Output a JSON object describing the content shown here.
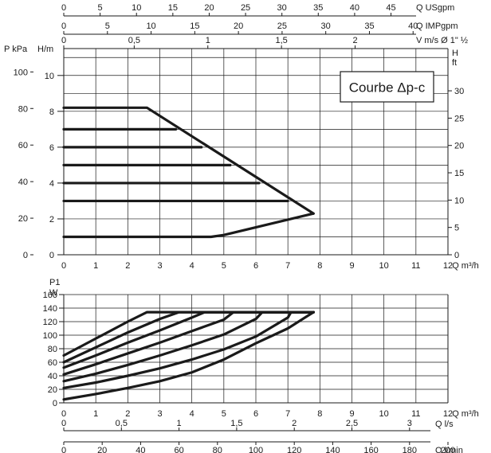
{
  "chart_data": [
    {
      "type": "line",
      "x_unit": "Q m³/h",
      "xlim": [
        0,
        12
      ],
      "x_ticks": [
        "0",
        "1",
        "2",
        "3",
        "4",
        "5",
        "6",
        "7",
        "8",
        "9",
        "10",
        "11",
        "12"
      ],
      "y_left_unit_1": "P kPa",
      "y_left_unit_2": "H/m",
      "y_left_1_ticks": [
        "0",
        "20",
        "40",
        "60",
        "80",
        "100"
      ],
      "y_left_2_ticks": [
        "0",
        "2",
        "4",
        "6",
        "8",
        "10"
      ],
      "y_right_unit_top": "H",
      "y_right_unit_bottom": "ft",
      "y_right_ticks": [
        "0",
        "5",
        "10",
        "15",
        "20",
        "25",
        "30"
      ],
      "ylim": [
        0,
        11.5
      ],
      "legend_title": "Courbe Δp-c",
      "top_axes": [
        {
          "unit": "Q USgpm",
          "ticks": [
            "0",
            "5",
            "10",
            "15",
            "20",
            "25",
            "30",
            "35",
            "40",
            "45"
          ],
          "tick_values_m3h": [
            0,
            1.1356,
            2.2712,
            3.4069,
            4.5425,
            5.6781,
            6.8137,
            7.9493,
            9.085,
            10.2206
          ]
        },
        {
          "unit": "Q IMPgpm",
          "ticks": [
            "0",
            "5",
            "10",
            "15",
            "20",
            "25",
            "30",
            "35",
            "40"
          ],
          "tick_values_m3h": [
            0,
            1.3638,
            2.7277,
            4.0915,
            5.4553,
            6.8191,
            8.183,
            9.5468,
            10.9106
          ]
        },
        {
          "unit": "V m/s Ø 1\" ½",
          "ticks": [
            "0",
            "0,5",
            "1",
            "1,5",
            "2"
          ],
          "tick_values_m3h": [
            0,
            2.2,
            4.5,
            6.8,
            9.1
          ]
        }
      ],
      "series": [
        {
          "x": [
            0,
            2.6,
            7.8
          ],
          "y": [
            8.2,
            8.2,
            2.3
          ]
        },
        {
          "x": [
            0,
            3.5
          ],
          "y": [
            7.0,
            7.0
          ]
        },
        {
          "x": [
            0,
            4.3
          ],
          "y": [
            6.0,
            6.0
          ]
        },
        {
          "x": [
            0,
            5.2
          ],
          "y": [
            5.0,
            5.0
          ]
        },
        {
          "x": [
            0,
            6.1
          ],
          "y": [
            4.0,
            4.0
          ]
        },
        {
          "x": [
            0,
            7.0
          ],
          "y": [
            3.0,
            3.0
          ]
        },
        {
          "x": [
            0,
            4.6,
            5.0,
            7.8
          ],
          "y": [
            1.0,
            1.0,
            1.1,
            2.3
          ]
        }
      ]
    },
    {
      "type": "line",
      "y_unit_1": "P1",
      "y_unit_2": "W",
      "ylim": [
        0,
        160
      ],
      "y_ticks": [
        "0",
        "20",
        "40",
        "60",
        "80",
        "100",
        "120",
        "140",
        "160"
      ],
      "xlim": [
        0,
        12
      ],
      "x_unit": "Q m³/h",
      "x_ticks": [
        "0",
        "1",
        "2",
        "3",
        "4",
        "5",
        "6",
        "7",
        "8",
        "9",
        "10",
        "11",
        "12"
      ],
      "bottom_axes": [
        {
          "unit": "Q l/s",
          "ticks": [
            "0",
            "0,5",
            "1",
            "1,5",
            "2",
            "2,5",
            "3"
          ],
          "tick_values_m3h": [
            0,
            1.8,
            3.6,
            5.4,
            7.2,
            9.0,
            10.8
          ]
        },
        {
          "unit": "Q l/min",
          "ticks": [
            "0",
            "20",
            "40",
            "60",
            "80",
            "100",
            "120",
            "140",
            "160",
            "180",
            "200"
          ],
          "tick_values_m3h": [
            0,
            1.2,
            2.4,
            3.6,
            4.8,
            6.0,
            7.2,
            8.4,
            9.6,
            10.8,
            12.0
          ]
        }
      ],
      "series": [
        {
          "x": [
            0,
            1.0,
            2.0,
            2.6,
            7.8
          ],
          "y": [
            70,
            95,
            120,
            134,
            134
          ]
        },
        {
          "x": [
            0,
            1.0,
            2.0,
            3.0,
            3.6,
            7.8
          ],
          "y": [
            60,
            82,
            104,
            124,
            134,
            134
          ]
        },
        {
          "x": [
            0,
            1.0,
            2.0,
            3.0,
            4.0,
            4.4,
            7.8
          ],
          "y": [
            52,
            70,
            89,
            107,
            126,
            134,
            134
          ]
        },
        {
          "x": [
            0,
            1.0,
            2.0,
            3.0,
            4.0,
            5.0,
            5.3,
            7.8
          ],
          "y": [
            42,
            57,
            73,
            89,
            106,
            123,
            134,
            134
          ]
        },
        {
          "x": [
            0,
            1.0,
            2.0,
            3.0,
            4.0,
            5.0,
            6.0,
            6.2,
            7.8
          ],
          "y": [
            32,
            43,
            56,
            70,
            85,
            101,
            124,
            134,
            134
          ]
        },
        {
          "x": [
            0,
            1.0,
            2.0,
            3.0,
            4.0,
            5.0,
            6.0,
            7.0,
            7.1,
            7.8
          ],
          "y": [
            22,
            30,
            40,
            51,
            64,
            79,
            98,
            126,
            134,
            134
          ]
        },
        {
          "x": [
            0,
            1.0,
            2.0,
            3.0,
            4.0,
            5.0,
            6.0,
            7.0,
            7.8
          ],
          "y": [
            5,
            13,
            22,
            32,
            45,
            64,
            88,
            110,
            134
          ]
        }
      ]
    }
  ]
}
